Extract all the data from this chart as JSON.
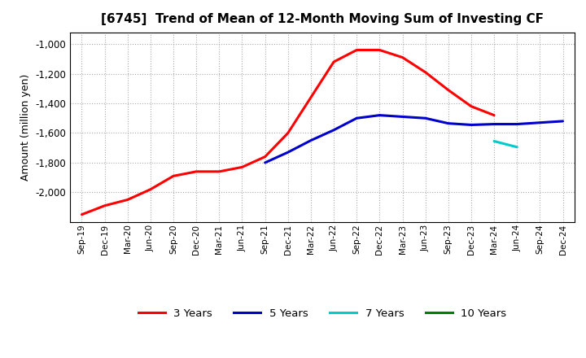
{
  "title": "[6745]  Trend of Mean of 12-Month Moving Sum of Investing CF",
  "ylabel": "Amount (million yen)",
  "background_color": "#ffffff",
  "grid_color": "#aaaaaa",
  "ylim": [
    -2200,
    -920
  ],
  "yticks": [
    -2000,
    -1800,
    -1600,
    -1400,
    -1200,
    -1000
  ],
  "series": {
    "3 Years": {
      "color": "#ff0000",
      "x": [
        "Sep-19",
        "Dec-19",
        "Mar-20",
        "Jun-20",
        "Sep-20",
        "Dec-20",
        "Mar-21",
        "Jun-21",
        "Sep-21",
        "Dec-21",
        "Mar-22",
        "Jun-22",
        "Sep-22",
        "Dec-22",
        "Mar-23",
        "Jun-23",
        "Sep-23",
        "Dec-23",
        "Mar-24"
      ],
      "y": [
        -2150,
        -2090,
        -2050,
        -1980,
        -1890,
        -1860,
        -1860,
        -1830,
        -1760,
        -1600,
        -1360,
        -1120,
        -1040,
        -1040,
        -1090,
        -1190,
        -1310,
        -1420,
        -1480
      ]
    },
    "5 Years": {
      "color": "#0000cc",
      "x": [
        "Sep-21",
        "Dec-21",
        "Mar-22",
        "Jun-22",
        "Sep-22",
        "Dec-22",
        "Mar-23",
        "Jun-23",
        "Sep-23",
        "Dec-23",
        "Mar-24",
        "Jun-24",
        "Sep-24",
        "Dec-24"
      ],
      "y": [
        -1800,
        -1730,
        -1650,
        -1580,
        -1500,
        -1480,
        -1490,
        -1500,
        -1535,
        -1545,
        -1540,
        -1540,
        -1530,
        -1520
      ]
    },
    "7 Years": {
      "color": "#00cccc",
      "x": [
        "Mar-24",
        "Jun-24"
      ],
      "y": [
        -1655,
        -1695
      ]
    },
    "10 Years": {
      "color": "#008000",
      "x": [],
      "y": []
    }
  },
  "x_labels": [
    "Sep-19",
    "Dec-19",
    "Mar-20",
    "Jun-20",
    "Sep-20",
    "Dec-20",
    "Mar-21",
    "Jun-21",
    "Sep-21",
    "Dec-21",
    "Mar-22",
    "Jun-22",
    "Sep-22",
    "Dec-22",
    "Mar-23",
    "Jun-23",
    "Sep-23",
    "Dec-23",
    "Mar-24",
    "Jun-24",
    "Sep-24",
    "Dec-24"
  ],
  "legend_labels": [
    "3 Years",
    "5 Years",
    "7 Years",
    "10 Years"
  ],
  "legend_colors": [
    "#ff0000",
    "#0000cc",
    "#00cccc",
    "#008000"
  ]
}
